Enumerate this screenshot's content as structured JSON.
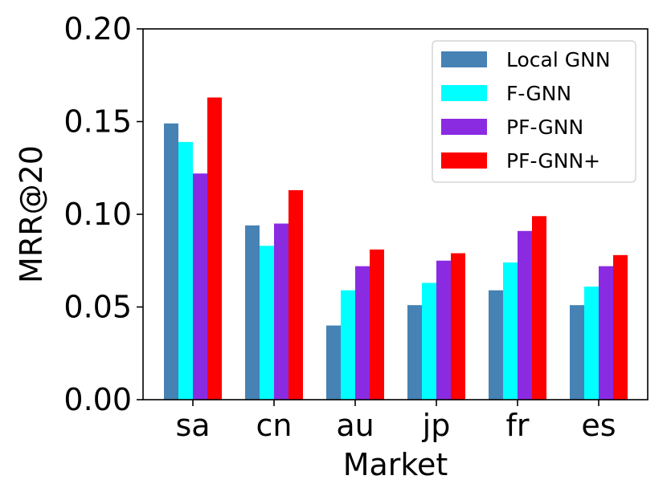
{
  "chart_data": {
    "type": "bar",
    "title": "",
    "xlabel": "Market",
    "ylabel": "MRR@20",
    "categories": [
      "sa",
      "cn",
      "au",
      "jp",
      "fr",
      "es"
    ],
    "ylim": [
      0.0,
      0.2
    ],
    "yticks": [
      "0.00",
      "0.05",
      "0.10",
      "0.15",
      "0.20"
    ],
    "grid": false,
    "legend_position": "top-right",
    "series": [
      {
        "name": "Local GNN",
        "color": "#4682b4",
        "values": [
          0.149,
          0.094,
          0.04,
          0.051,
          0.059,
          0.051
        ]
      },
      {
        "name": "F-GNN",
        "color": "#00ffff",
        "values": [
          0.139,
          0.083,
          0.059,
          0.063,
          0.074,
          0.061
        ]
      },
      {
        "name": "PF-GNN",
        "color": "#8a2be2",
        "values": [
          0.122,
          0.095,
          0.072,
          0.075,
          0.091,
          0.072
        ]
      },
      {
        "name": "PF-GNN+",
        "color": "#ff0000",
        "values": [
          0.163,
          0.113,
          0.081,
          0.079,
          0.099,
          0.078
        ]
      }
    ]
  }
}
